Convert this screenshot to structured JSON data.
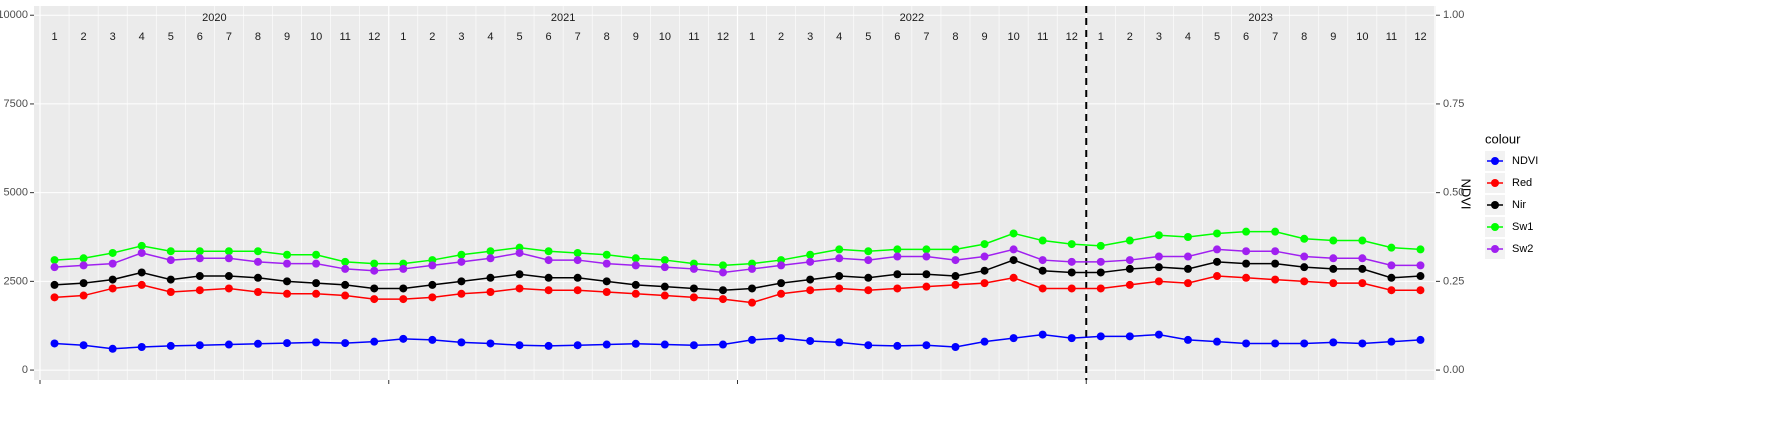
{
  "chart_data": {
    "type": "line",
    "x": [
      "2020-01",
      "2020-02",
      "2020-03",
      "2020-04",
      "2020-05",
      "2020-06",
      "2020-07",
      "2020-08",
      "2020-09",
      "2020-10",
      "2020-11",
      "2020-12",
      "2021-01",
      "2021-02",
      "2021-03",
      "2021-04",
      "2021-05",
      "2021-06",
      "2021-07",
      "2021-08",
      "2021-09",
      "2021-10",
      "2021-11",
      "2021-12",
      "2022-01",
      "2022-02",
      "2022-03",
      "2022-04",
      "2022-05",
      "2022-06",
      "2022-07",
      "2022-08",
      "2022-09",
      "2022-10",
      "2022-11",
      "2022-12",
      "2023-01",
      "2023-02",
      "2023-03",
      "2023-04",
      "2023-05",
      "2023-06",
      "2023-07",
      "2023-08",
      "2023-09",
      "2023-10",
      "2023-11",
      "2023-12"
    ],
    "years": [
      "2020",
      "2021",
      "2022",
      "2023"
    ],
    "month_labels": [
      "1",
      "2",
      "3",
      "4",
      "5",
      "6",
      "7",
      "8",
      "9",
      "10",
      "11",
      "12"
    ],
    "y2_label": "NDVI",
    "legend_title": "colour",
    "vline_x": "2023-01",
    "ylim": [
      -280,
      10260
    ],
    "yticks": [
      0,
      2500,
      5000,
      7500,
      10000
    ],
    "y2lim": [
      -0.028,
      1.026
    ],
    "y2ticks": [
      {
        "value": 0,
        "label": "0.00"
      },
      {
        "value": 0.25,
        "label": "0.25"
      },
      {
        "value": 0.5,
        "label": "0.50"
      },
      {
        "value": 0.75,
        "label": "0.75"
      },
      {
        "value": 1,
        "label": "1.00"
      }
    ],
    "grid": true,
    "series": [
      {
        "name": "NDVI",
        "color": "#0000ff",
        "axis": "y2",
        "values": [
          0.075,
          0.07,
          0.06,
          0.065,
          0.068,
          0.07,
          0.072,
          0.074,
          0.076,
          0.078,
          0.076,
          0.08,
          0.088,
          0.085,
          0.078,
          0.075,
          0.07,
          0.068,
          0.07,
          0.072,
          0.074,
          0.072,
          0.07,
          0.072,
          0.085,
          0.09,
          0.082,
          0.078,
          0.07,
          0.068,
          0.07,
          0.065,
          0.08,
          0.09,
          0.1,
          0.09,
          0.095,
          0.095,
          0.1,
          0.085,
          0.08,
          0.075,
          0.075,
          0.075,
          0.078,
          0.075,
          0.08,
          0.085
        ]
      },
      {
        "name": "Red",
        "color": "#ff0000",
        "values": [
          2050,
          2100,
          2300,
          2400,
          2200,
          2250,
          2300,
          2200,
          2150,
          2150,
          2100,
          2000,
          2000,
          2050,
          2150,
          2200,
          2300,
          2250,
          2250,
          2200,
          2150,
          2100,
          2050,
          2000,
          1900,
          2150,
          2250,
          2300,
          2250,
          2300,
          2350,
          2400,
          2450,
          2600,
          2300,
          2300,
          2300,
          2400,
          2500,
          2450,
          2650,
          2600,
          2550,
          2500,
          2450,
          2450,
          2250,
          2250
        ]
      },
      {
        "name": "Nir",
        "color": "#000000",
        "values": [
          2400,
          2450,
          2550,
          2750,
          2550,
          2650,
          2650,
          2600,
          2500,
          2450,
          2400,
          2300,
          2300,
          2400,
          2500,
          2600,
          2700,
          2600,
          2600,
          2500,
          2400,
          2350,
          2300,
          2250,
          2300,
          2450,
          2550,
          2650,
          2600,
          2700,
          2700,
          2650,
          2800,
          3100,
          2800,
          2750,
          2750,
          2850,
          2900,
          2850,
          3050,
          3000,
          3000,
          2900,
          2850,
          2850,
          2600,
          2650
        ]
      },
      {
        "name": "Sw1",
        "color": "#00ff00",
        "values": [
          3100,
          3150,
          3300,
          3500,
          3350,
          3350,
          3350,
          3350,
          3250,
          3250,
          3050,
          3000,
          3000,
          3100,
          3250,
          3350,
          3450,
          3350,
          3300,
          3250,
          3150,
          3100,
          3000,
          2950,
          3000,
          3100,
          3250,
          3400,
          3350,
          3400,
          3400,
          3400,
          3550,
          3850,
          3650,
          3550,
          3500,
          3650,
          3800,
          3750,
          3850,
          3900,
          3900,
          3700,
          3650,
          3650,
          3450,
          3400
        ]
      },
      {
        "name": "Sw2",
        "color": "#a020f0",
        "values": [
          2900,
          2950,
          3000,
          3300,
          3100,
          3150,
          3150,
          3050,
          3000,
          3000,
          2850,
          2800,
          2850,
          2950,
          3050,
          3150,
          3300,
          3100,
          3100,
          3000,
          2950,
          2900,
          2850,
          2750,
          2850,
          2950,
          3050,
          3150,
          3100,
          3200,
          3200,
          3100,
          3200,
          3400,
          3100,
          3050,
          3050,
          3100,
          3200,
          3200,
          3400,
          3350,
          3350,
          3200,
          3150,
          3150,
          2950,
          2950
        ]
      }
    ]
  }
}
